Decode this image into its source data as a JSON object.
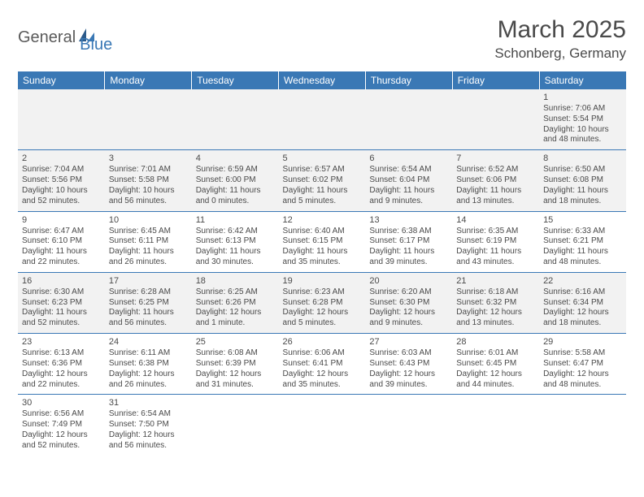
{
  "logo": {
    "part1": "General",
    "part2": "Blue"
  },
  "title": "March 2025",
  "location": "Schonberg, Germany",
  "header_color": "#3a78b5",
  "row_alt_bg": "#f2f2f2",
  "border_color": "#3a78b5",
  "text_color": "#4a4a4a",
  "columns": [
    "Sunday",
    "Monday",
    "Tuesday",
    "Wednesday",
    "Thursday",
    "Friday",
    "Saturday"
  ],
  "weeks": [
    [
      null,
      null,
      null,
      null,
      null,
      null,
      {
        "n": "1",
        "sunrise": "7:06 AM",
        "sunset": "5:54 PM",
        "day": "10 hours and 48 minutes."
      }
    ],
    [
      {
        "n": "2",
        "sunrise": "7:04 AM",
        "sunset": "5:56 PM",
        "day": "10 hours and 52 minutes."
      },
      {
        "n": "3",
        "sunrise": "7:01 AM",
        "sunset": "5:58 PM",
        "day": "10 hours and 56 minutes."
      },
      {
        "n": "4",
        "sunrise": "6:59 AM",
        "sunset": "6:00 PM",
        "day": "11 hours and 0 minutes."
      },
      {
        "n": "5",
        "sunrise": "6:57 AM",
        "sunset": "6:02 PM",
        "day": "11 hours and 5 minutes."
      },
      {
        "n": "6",
        "sunrise": "6:54 AM",
        "sunset": "6:04 PM",
        "day": "11 hours and 9 minutes."
      },
      {
        "n": "7",
        "sunrise": "6:52 AM",
        "sunset": "6:06 PM",
        "day": "11 hours and 13 minutes."
      },
      {
        "n": "8",
        "sunrise": "6:50 AM",
        "sunset": "6:08 PM",
        "day": "11 hours and 18 minutes."
      }
    ],
    [
      {
        "n": "9",
        "sunrise": "6:47 AM",
        "sunset": "6:10 PM",
        "day": "11 hours and 22 minutes."
      },
      {
        "n": "10",
        "sunrise": "6:45 AM",
        "sunset": "6:11 PM",
        "day": "11 hours and 26 minutes."
      },
      {
        "n": "11",
        "sunrise": "6:42 AM",
        "sunset": "6:13 PM",
        "day": "11 hours and 30 minutes."
      },
      {
        "n": "12",
        "sunrise": "6:40 AM",
        "sunset": "6:15 PM",
        "day": "11 hours and 35 minutes."
      },
      {
        "n": "13",
        "sunrise": "6:38 AM",
        "sunset": "6:17 PM",
        "day": "11 hours and 39 minutes."
      },
      {
        "n": "14",
        "sunrise": "6:35 AM",
        "sunset": "6:19 PM",
        "day": "11 hours and 43 minutes."
      },
      {
        "n": "15",
        "sunrise": "6:33 AM",
        "sunset": "6:21 PM",
        "day": "11 hours and 48 minutes."
      }
    ],
    [
      {
        "n": "16",
        "sunrise": "6:30 AM",
        "sunset": "6:23 PM",
        "day": "11 hours and 52 minutes."
      },
      {
        "n": "17",
        "sunrise": "6:28 AM",
        "sunset": "6:25 PM",
        "day": "11 hours and 56 minutes."
      },
      {
        "n": "18",
        "sunrise": "6:25 AM",
        "sunset": "6:26 PM",
        "day": "12 hours and 1 minute."
      },
      {
        "n": "19",
        "sunrise": "6:23 AM",
        "sunset": "6:28 PM",
        "day": "12 hours and 5 minutes."
      },
      {
        "n": "20",
        "sunrise": "6:20 AM",
        "sunset": "6:30 PM",
        "day": "12 hours and 9 minutes."
      },
      {
        "n": "21",
        "sunrise": "6:18 AM",
        "sunset": "6:32 PM",
        "day": "12 hours and 13 minutes."
      },
      {
        "n": "22",
        "sunrise": "6:16 AM",
        "sunset": "6:34 PM",
        "day": "12 hours and 18 minutes."
      }
    ],
    [
      {
        "n": "23",
        "sunrise": "6:13 AM",
        "sunset": "6:36 PM",
        "day": "12 hours and 22 minutes."
      },
      {
        "n": "24",
        "sunrise": "6:11 AM",
        "sunset": "6:38 PM",
        "day": "12 hours and 26 minutes."
      },
      {
        "n": "25",
        "sunrise": "6:08 AM",
        "sunset": "6:39 PM",
        "day": "12 hours and 31 minutes."
      },
      {
        "n": "26",
        "sunrise": "6:06 AM",
        "sunset": "6:41 PM",
        "day": "12 hours and 35 minutes."
      },
      {
        "n": "27",
        "sunrise": "6:03 AM",
        "sunset": "6:43 PM",
        "day": "12 hours and 39 minutes."
      },
      {
        "n": "28",
        "sunrise": "6:01 AM",
        "sunset": "6:45 PM",
        "day": "12 hours and 44 minutes."
      },
      {
        "n": "29",
        "sunrise": "5:58 AM",
        "sunset": "6:47 PM",
        "day": "12 hours and 48 minutes."
      }
    ],
    [
      {
        "n": "30",
        "sunrise": "6:56 AM",
        "sunset": "7:49 PM",
        "day": "12 hours and 52 minutes."
      },
      {
        "n": "31",
        "sunrise": "6:54 AM",
        "sunset": "7:50 PM",
        "day": "12 hours and 56 minutes."
      },
      null,
      null,
      null,
      null,
      null
    ]
  ],
  "labels": {
    "sunrise": "Sunrise:",
    "sunset": "Sunset:",
    "daylight": "Daylight:"
  }
}
